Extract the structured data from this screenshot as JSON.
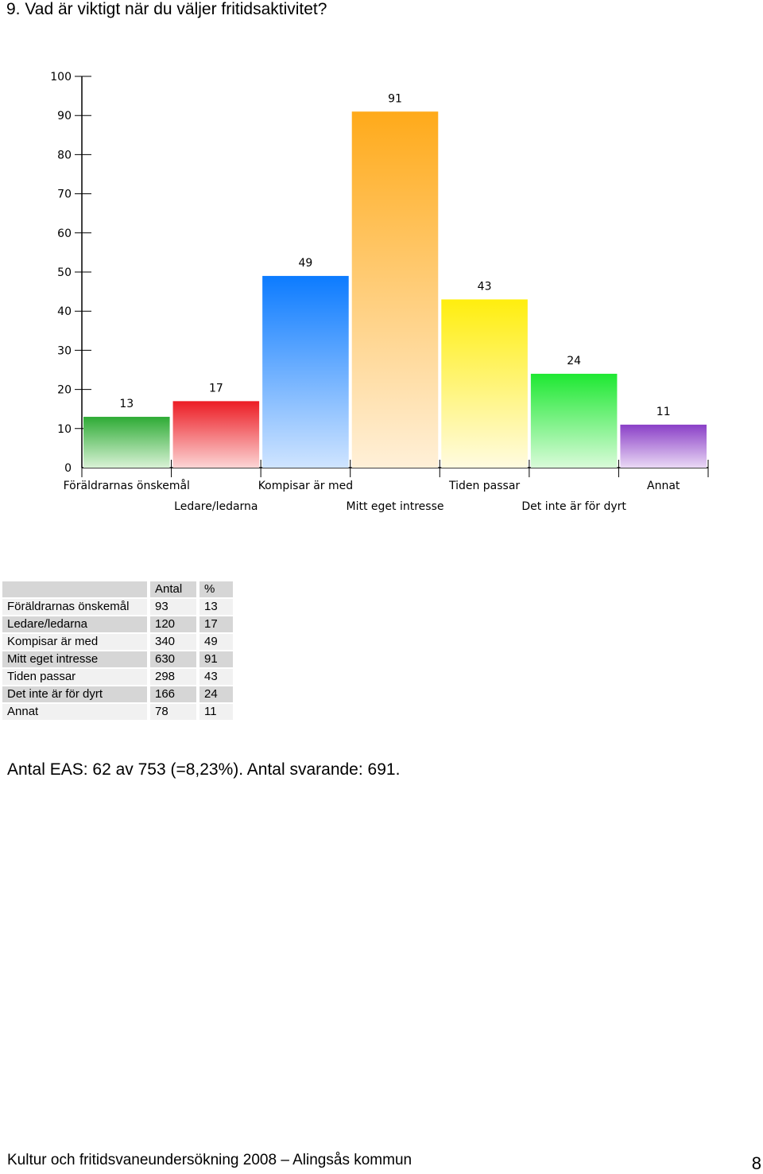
{
  "page": {
    "title": "9. Vad är viktigt när du väljer fritidsaktivitet?",
    "summary": "Antal EAS: 62 av 753 (=8,23%). Antal svarande:  691.",
    "footer": "Kultur och fritidsvaneundersökning 2008 – Alingsås kommun",
    "page_number": "8"
  },
  "chart_data": {
    "type": "bar",
    "title": "",
    "xlabel": "",
    "ylabel": "",
    "ylim": [
      0,
      100
    ],
    "yticks": [
      0,
      10,
      20,
      30,
      40,
      50,
      60,
      70,
      80,
      90,
      100
    ],
    "categories": [
      "Föräldrarnas önskemål",
      "Ledare/ledarna",
      "Kompisar är med",
      "Mitt eget intresse",
      "Tiden passar",
      "Det inte är för dyrt",
      "Annat"
    ],
    "values": [
      13,
      17,
      49,
      91,
      43,
      24,
      11
    ],
    "colors": [
      [
        "#2eab35",
        "#d9f2d6"
      ],
      [
        "#ec1c24",
        "#fcd5d5"
      ],
      [
        "#0c7bff",
        "#cfe4ff"
      ],
      [
        "#ffaa1a",
        "#fff0d8"
      ],
      [
        "#ffee0e",
        "#fffbe0"
      ],
      [
        "#1ee832",
        "#d9fbd9"
      ],
      [
        "#8a3fc7",
        "#ead9f5"
      ]
    ],
    "grid": false,
    "legend": "none"
  },
  "table": {
    "headers": [
      "",
      "Antal",
      "%"
    ],
    "rows": [
      [
        "Föräldrarnas önskemål",
        "93",
        "13"
      ],
      [
        "Ledare/ledarna",
        "120",
        "17"
      ],
      [
        "Kompisar är med",
        "340",
        "49"
      ],
      [
        "Mitt eget intresse",
        "630",
        "91"
      ],
      [
        "Tiden passar",
        "298",
        "43"
      ],
      [
        "Det inte är för dyrt",
        "166",
        "24"
      ],
      [
        "Annat",
        "78",
        "11"
      ]
    ]
  }
}
